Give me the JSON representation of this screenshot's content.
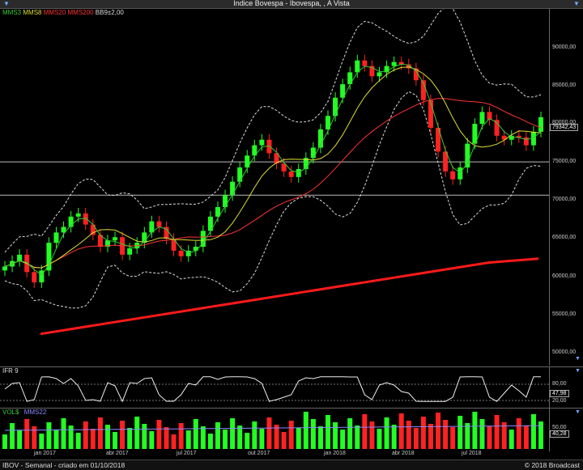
{
  "window": {
    "title": "Indice Bovespa - Ibovespa, , A Vista"
  },
  "main_legend": [
    {
      "label": "MMS3",
      "color": "#33cc33"
    },
    {
      "label": "MMS8",
      "color": "#dddd33"
    },
    {
      "label": "MMS20",
      "color": "#ff3333"
    },
    {
      "label": "MMS200",
      "color": "#ff3333"
    },
    {
      "label": "BB9±2,00",
      "color": "#dddddd"
    }
  ],
  "price_axis": [
    "90000,00",
    "85000,00",
    "80000,00",
    "75000,00",
    "70000,00",
    "65000,00",
    "60000,00",
    "55000,00",
    "50000,00"
  ],
  "last_price": "79342,43",
  "ifr": {
    "label": "IFR 9",
    "ticks": [
      "80,00",
      "20,00"
    ],
    "current": "47,98"
  },
  "volume": {
    "label": "VOL$",
    "ma_label": "MMS22",
    "current": "40,28",
    "axis": "50,00"
  },
  "x_axis": [
    "jan 2017",
    "abr 2017",
    "jul 2017",
    "out 2017",
    "jan 2018",
    "abr 2018",
    "jul 2018"
  ],
  "footer": {
    "left": "IBOV - Semanal - criado em 01/10/2018",
    "right": "© 2018 Broadcast"
  },
  "chart_data": {
    "type": "line",
    "title": "Indice Bovespa - Ibovespa, , A Vista",
    "series": [
      {
        "name": "Ibovespa",
        "values": [
          60500,
          61200,
          62000,
          59800,
          58500,
          60000,
          63500,
          64800,
          65500,
          66800,
          67200,
          65800,
          64500,
          63000,
          63800,
          64200,
          62000,
          62800,
          63500,
          64800,
          66200,
          65500,
          64000,
          62500,
          61800,
          62500,
          63000,
          65000,
          66800,
          68000,
          69500,
          71200,
          73000,
          74500,
          75800,
          76500,
          74800,
          73500,
          72500,
          71800,
          72800,
          74200,
          75500,
          77800,
          79500,
          81800,
          83500,
          85000,
          86500,
          85800,
          84500,
          85000,
          85800,
          86300,
          86000,
          85500,
          84000,
          81500,
          78000,
          75000,
          72500,
          71500,
          73000,
          76000,
          78500,
          80000,
          79000,
          77000,
          76500,
          77000,
          76800,
          75800,
          77500,
          79342
        ]
      },
      {
        "name": "MMS200",
        "values": [
          52000,
          53000,
          54000,
          55000,
          56000,
          57000,
          58000,
          59000,
          60000,
          61000,
          61500
        ]
      }
    ],
    "ylim": [
      48000,
      93000
    ],
    "grid": false
  }
}
